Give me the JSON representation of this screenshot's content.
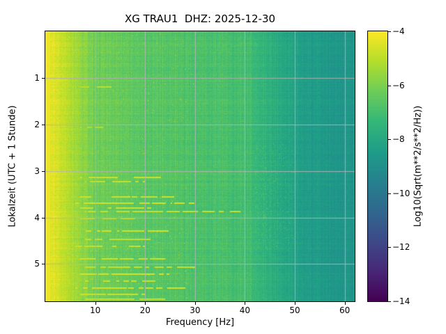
{
  "chart_data": {
    "type": "heatmap",
    "subtype": "spectrogram",
    "title": "XG TRAU1  DHZ: 2025-12-30",
    "station": "XG TRAU1",
    "channel": "DHZ",
    "date": "2025-12-30",
    "xlabel": "Frequency [Hz]",
    "ylabel": "Lokalzeit (UTC + 1 Stunde)",
    "x_range": [
      0,
      62
    ],
    "y_range": [
      0,
      5.8
    ],
    "x_ticks": [
      10,
      20,
      30,
      40,
      50,
      60
    ],
    "y_ticks": [
      1,
      2,
      3,
      4,
      5
    ],
    "grid": true,
    "grid_color": "#b2b2b2",
    "colormap": "viridis",
    "colorbar": {
      "label": "Log10(Sqrt(m**2/s**2/Hz))",
      "ticks": [
        -4,
        -6,
        -8,
        -10,
        -12,
        -14
      ],
      "range": [
        -14,
        -4
      ],
      "position": "right"
    },
    "freq_profile": [
      [
        0,
        -4.3
      ],
      [
        2,
        -4.5
      ],
      [
        5,
        -5.2
      ],
      [
        10,
        -6.2
      ],
      [
        20,
        -6.6
      ],
      [
        30,
        -6.8
      ],
      [
        40,
        -7.0
      ],
      [
        46,
        -7.8
      ],
      [
        52,
        -8.4
      ],
      [
        58,
        -8.7
      ],
      [
        62,
        -8.8
      ]
    ],
    "hf_speckle_band": [
      2.4,
      4.7,
      42,
      50
    ],
    "events": [
      [
        1.18,
        7,
        14,
        -5.0
      ],
      [
        2.05,
        7,
        12,
        -5.1
      ],
      [
        3.12,
        7,
        24,
        -4.7
      ],
      [
        3.22,
        8,
        20,
        -4.8
      ],
      [
        3.55,
        7,
        26,
        -4.7
      ],
      [
        3.68,
        6,
        30,
        -4.6
      ],
      [
        3.78,
        7,
        22,
        -4.7
      ],
      [
        3.86,
        8,
        40,
        -4.8
      ],
      [
        4.0,
        7,
        18,
        -4.8
      ],
      [
        4.28,
        7,
        25,
        -4.7
      ],
      [
        4.45,
        8,
        22,
        -4.8
      ],
      [
        4.6,
        6,
        20,
        -4.7
      ],
      [
        4.88,
        7,
        24,
        -4.7
      ],
      [
        5.05,
        8,
        30,
        -4.8
      ],
      [
        5.2,
        7,
        26,
        -4.6
      ],
      [
        5.35,
        8,
        22,
        -4.7
      ],
      [
        5.5,
        6,
        28,
        -4.6
      ],
      [
        5.63,
        7,
        20,
        -4.7
      ],
      [
        5.74,
        8,
        24,
        -4.7
      ]
    ]
  }
}
